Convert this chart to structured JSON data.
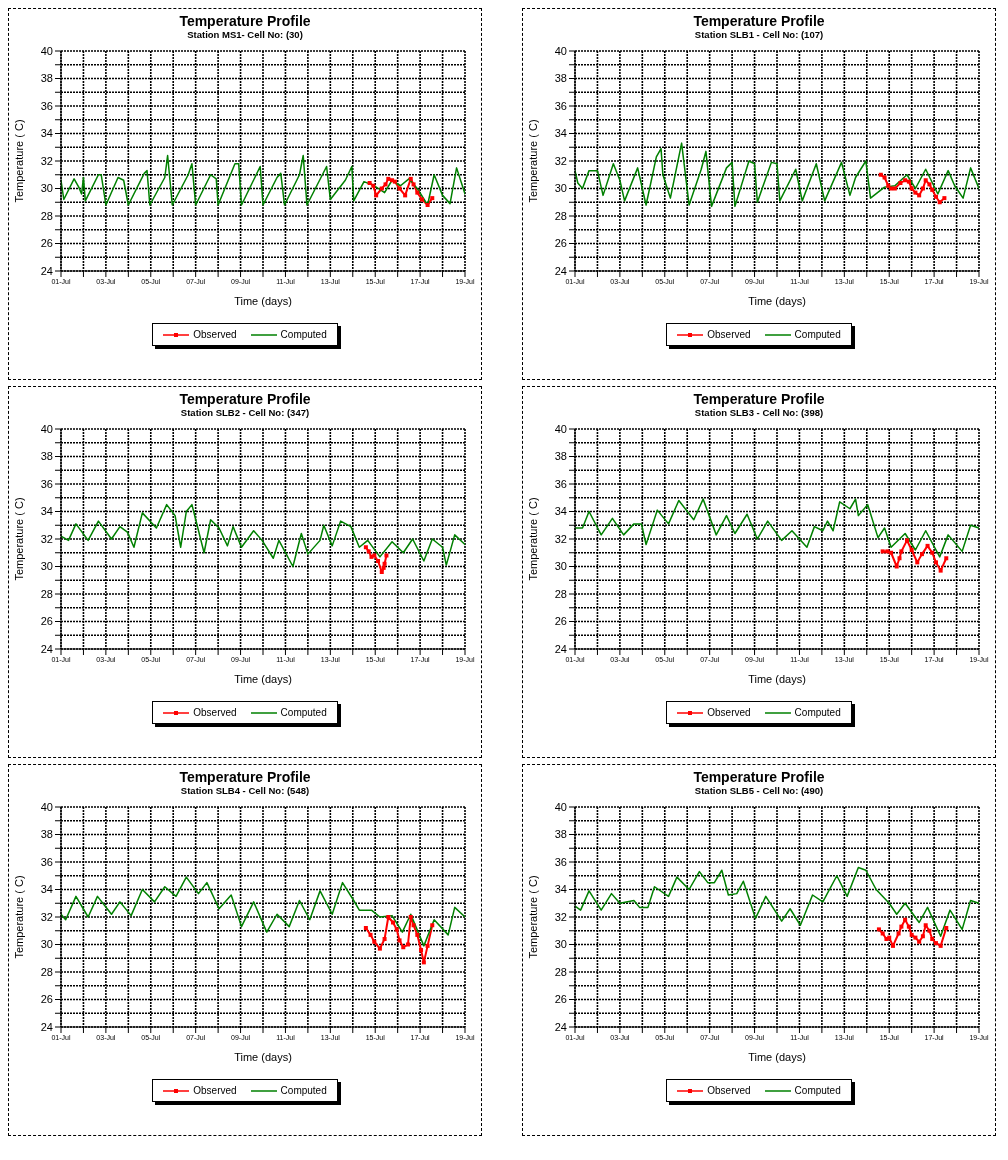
{
  "chart_data": [
    {
      "type": "line",
      "title": "Temperature Profile",
      "subtitle": "Station MS1- Cell No: (30)",
      "xlabel": "Time (days)",
      "ylabel": "Temperature ( C)",
      "xlim": [
        "--07-01",
        "--07-19"
      ],
      "xticks": [
        {
          "value": "--07-01",
          "label": "01-Jul"
        },
        {
          "value": "--07-02",
          "label": null
        },
        {
          "value": "--07-03",
          "label": "03-Jul"
        },
        {
          "value": "--07-04",
          "label": null
        },
        {
          "value": "--07-05",
          "label": "05-Jul"
        },
        {
          "value": "--07-06",
          "label": null
        },
        {
          "value": "--07-07",
          "label": "07-Jul"
        },
        {
          "value": "--07-08",
          "label": null
        },
        {
          "value": "--07-09",
          "label": "09-Jul"
        },
        {
          "value": "--07-10",
          "label": null
        },
        {
          "value": "--07-11",
          "label": "11-Jul"
        },
        {
          "value": "--07-12",
          "label": null
        },
        {
          "value": "--07-13",
          "label": "13-Jul"
        },
        {
          "value": "--07-14",
          "label": null
        },
        {
          "value": "--07-15",
          "label": "15-Jul"
        },
        {
          "value": "--07-16",
          "label": null
        },
        {
          "value": "--07-17",
          "label": "17-Jul"
        },
        {
          "value": "--07-18",
          "label": null
        },
        {
          "value": "--07-19",
          "label": "19-Jul"
        }
      ],
      "ylim": [
        24,
        40
      ],
      "yticks": [
        24,
        {
          "value": 25,
          "label": null
        },
        26,
        {
          "value": 27,
          "label": null
        },
        28,
        {
          "value": 29,
          "label": null
        },
        30,
        {
          "value": 31,
          "label": null
        },
        32,
        {
          "value": 33,
          "label": null
        },
        34,
        {
          "value": 35,
          "label": null
        },
        36,
        {
          "value": 37,
          "label": null
        },
        38,
        {
          "value": 39,
          "label": null
        },
        40
      ],
      "grid": true,
      "legend": "bottom",
      "series": [
        {
          "name": "Observed",
          "color": "#ff0000",
          "marker": "square",
          "x": [
            "--07-14T18:00",
            "--07-14T22:00",
            "--07-15T01:00",
            "--07-15T07:00",
            "--07-15T11:00",
            "--07-15T14:00",
            "--07-15T18:00",
            "--07-15T21:00",
            "--07-16T02:00",
            "--07-16T08:00",
            "--07-16T14:00",
            "--07-16T17:00",
            "--07-16T21:00",
            "--07-17T02:00",
            "--07-17T08:00",
            "--07-17T13:00"
          ],
          "values": [
            30.4,
            30.2,
            29.5,
            30.0,
            30.3,
            30.7,
            30.6,
            30.5,
            30.0,
            29.5,
            30.7,
            30.3,
            29.7,
            29.2,
            28.8,
            29.3
          ]
        },
        {
          "name": "Computed",
          "color": "#008000",
          "marker": "none",
          "x": [
            "--07-01T00:00",
            "--07-01T03:00",
            "--07-01T14:00",
            "--07-01T19:00",
            "--07-01T22:00",
            "--07-02T00:00",
            "--07-02T02:00",
            "--07-02T16:00",
            "--07-02T19:00",
            "--07-03T00:00",
            "--07-03T13:00",
            "--07-03T19:00",
            "--07-04T00:00",
            "--07-04T17:00",
            "--07-04T20:00",
            "--07-04T23:00",
            "--07-05T15:00",
            "--07-05T18:00",
            "--07-05T23:00",
            "--07-06T16:00",
            "--07-06T20:00",
            "--07-07T00:00",
            "--07-07T16:00",
            "--07-07T22:00",
            "--07-08T00:00",
            "--07-08T18:00",
            "--07-08T22:00",
            "--07-09T01:00",
            "--07-09T21:00",
            "--07-10T00:00",
            "--07-10T15:00",
            "--07-10T19:00",
            "--07-10T23:00",
            "--07-11T15:00",
            "--07-11T19:00",
            "--07-11T23:00",
            "--07-12T14:00",
            "--07-12T20:00",
            "--07-13T00:00",
            "--07-13T16:00",
            "--07-13T23:00",
            "--07-14T01:00",
            "--07-14T12:00",
            "--07-14T23:00",
            "--07-15T10:00",
            "--07-15T18:00",
            "--07-16T03:00",
            "--07-16T12:00",
            "--07-16T21:00",
            "--07-17T08:00",
            "--07-17T15:00",
            "--07-18T00:00",
            "--07-18T08:00",
            "--07-18T15:00",
            "--07-19T00:00"
          ],
          "values": [
            30.6,
            29.2,
            30.7,
            30.1,
            29.6,
            30.8,
            29.1,
            31.0,
            31.0,
            28.8,
            30.8,
            30.6,
            28.8,
            31.1,
            31.3,
            28.8,
            30.8,
            32.4,
            28.8,
            31.0,
            31.8,
            28.8,
            31.0,
            30.7,
            28.8,
            31.8,
            31.8,
            28.8,
            31.6,
            28.8,
            30.8,
            31.1,
            28.8,
            31.0,
            32.4,
            28.8,
            30.8,
            31.6,
            29.2,
            30.6,
            31.6,
            29.1,
            30.5,
            30.2,
            29.7,
            30.6,
            30.2,
            30.7,
            30.0,
            28.8,
            31.0,
            29.5,
            28.9,
            31.5,
            29.6
          ]
        }
      ]
    },
    {
      "type": "line",
      "title": "Temperature Profile",
      "subtitle": "Station SLB1 - Cell No: (107)",
      "xlabel": "Time (days)",
      "ylabel": "Temperature ( C)",
      "xlim": [
        "--07-01",
        "--07-19"
      ],
      "xticks": [
        {
          "value": "--07-01",
          "label": "01-Jul"
        },
        {
          "value": "--07-02",
          "label": null
        },
        {
          "value": "--07-03",
          "label": "03-Jul"
        },
        {
          "value": "--07-04",
          "label": null
        },
        {
          "value": "--07-05",
          "label": "05-Jul"
        },
        {
          "value": "--07-06",
          "label": null
        },
        {
          "value": "--07-07",
          "label": "07-Jul"
        },
        {
          "value": "--07-08",
          "label": null
        },
        {
          "value": "--07-09",
          "label": "09-Jul"
        },
        {
          "value": "--07-10",
          "label": null
        },
        {
          "value": "--07-11",
          "label": "11-Jul"
        },
        {
          "value": "--07-12",
          "label": null
        },
        {
          "value": "--07-13",
          "label": "13-Jul"
        },
        {
          "value": "--07-14",
          "label": null
        },
        {
          "value": "--07-15",
          "label": "15-Jul"
        },
        {
          "value": "--07-16",
          "label": null
        },
        {
          "value": "--07-17",
          "label": "17-Jul"
        },
        {
          "value": "--07-18",
          "label": null
        },
        {
          "value": "--07-19",
          "label": "19-Jul"
        }
      ],
      "ylim": [
        24,
        40
      ],
      "yticks": [
        24,
        {
          "value": 25,
          "label": null
        },
        26,
        {
          "value": 27,
          "label": null
        },
        28,
        {
          "value": 29,
          "label": null
        },
        30,
        {
          "value": 31,
          "label": null
        },
        32,
        {
          "value": 33,
          "label": null
        },
        34,
        {
          "value": 35,
          "label": null
        },
        36,
        {
          "value": 37,
          "label": null
        },
        38,
        {
          "value": 39,
          "label": null
        },
        40
      ],
      "grid": true,
      "legend": "bottom",
      "series": [
        {
          "name": "Observed",
          "color": "#ff0000",
          "marker": "square",
          "x": [
            "--07-14T15:00",
            "--07-14T19:00",
            "--07-14T23:00",
            "--07-15T02:00",
            "--07-15T06:00",
            "--07-15T12:00",
            "--07-15T17:00",
            "--07-15T21:00",
            "--07-16T00:00",
            "--07-16T04:00",
            "--07-16T08:00",
            "--07-16T12:00",
            "--07-16T15:00",
            "--07-16T19:00",
            "--07-16T22:00",
            "--07-17T02:00",
            "--07-17T06:00",
            "--07-17T11:00"
          ],
          "values": [
            31.0,
            30.8,
            30.2,
            30.0,
            30.0,
            30.4,
            30.6,
            30.5,
            30.0,
            29.7,
            29.5,
            30.0,
            30.6,
            30.3,
            29.9,
            29.4,
            29.0,
            29.3
          ]
        },
        {
          "name": "Computed",
          "color": "#008000",
          "marker": "none",
          "x": [
            "--07-01T00:00",
            "--07-01T03:00",
            "--07-01T08:00",
            "--07-01T15:00",
            "--07-02T00:00",
            "--07-02T06:00",
            "--07-02T17:00",
            "--07-03T00:00",
            "--07-03T05:00",
            "--07-03T19:00",
            "--07-04T04:00",
            "--07-04T15:00",
            "--07-04T20:00",
            "--07-04T22:00",
            "--07-05T06:00",
            "--07-05T18:00",
            "--07-06T02:00",
            "--07-06T15:00",
            "--07-06T20:00",
            "--07-07T02:00",
            "--07-07T18:00",
            "--07-08T00:00",
            "--07-08T03:00",
            "--07-08T18:00",
            "--07-09T00:00",
            "--07-09T03:00",
            "--07-09T18:00",
            "--07-10T00:00",
            "--07-10T03:00",
            "--07-10T20:00",
            "--07-11T03:00",
            "--07-11T18:00",
            "--07-12T03:00",
            "--07-12T21:00",
            "--07-13T06:00",
            "--07-13T12:00",
            "--07-13T23:00",
            "--07-14T04:00",
            "--07-14T19:00",
            "--07-15T06:00",
            "--07-15T19:00",
            "--07-16T04:00",
            "--07-16T15:00",
            "--07-17T04:00",
            "--07-17T15:00",
            "--07-17T22:00",
            "--07-18T07:00",
            "--07-18T15:00",
            "--07-19T00:00"
          ],
          "values": [
            31.3,
            30.4,
            30.0,
            31.3,
            31.3,
            29.5,
            31.8,
            30.6,
            29.1,
            31.5,
            28.8,
            32.3,
            32.9,
            31.0,
            29.3,
            33.3,
            28.8,
            31.4,
            32.7,
            28.7,
            31.5,
            31.9,
            28.7,
            32.0,
            31.8,
            29.0,
            31.9,
            31.8,
            29.1,
            31.4,
            29.1,
            31.8,
            29.1,
            31.9,
            29.5,
            30.8,
            32.0,
            29.3,
            30.1,
            30.2,
            31.0,
            30.0,
            31.4,
            29.6,
            31.3,
            30.2,
            29.3,
            31.5,
            30.0
          ]
        }
      ]
    },
    {
      "type": "line",
      "title": "Temperature Profile",
      "subtitle": "Station SLB2 - Cell No: (347)",
      "xlabel": "Time (days)",
      "ylabel": "Temperature ( C)",
      "xlim": [
        "--07-01",
        "--07-19"
      ],
      "xticks": [
        {
          "value": "--07-01",
          "label": "01-Jul"
        },
        {
          "value": "--07-02",
          "label": null
        },
        {
          "value": "--07-03",
          "label": "03-Jul"
        },
        {
          "value": "--07-04",
          "label": null
        },
        {
          "value": "--07-05",
          "label": "05-Jul"
        },
        {
          "value": "--07-06",
          "label": null
        },
        {
          "value": "--07-07",
          "label": "07-Jul"
        },
        {
          "value": "--07-08",
          "label": null
        },
        {
          "value": "--07-09",
          "label": "09-Jul"
        },
        {
          "value": "--07-10",
          "label": null
        },
        {
          "value": "--07-11",
          "label": "11-Jul"
        },
        {
          "value": "--07-12",
          "label": null
        },
        {
          "value": "--07-13",
          "label": "13-Jul"
        },
        {
          "value": "--07-14",
          "label": null
        },
        {
          "value": "--07-15",
          "label": "15-Jul"
        },
        {
          "value": "--07-16",
          "label": null
        },
        {
          "value": "--07-17",
          "label": "17-Jul"
        },
        {
          "value": "--07-18",
          "label": null
        },
        {
          "value": "--07-19",
          "label": "19-Jul"
        }
      ],
      "ylim": [
        24,
        40
      ],
      "yticks": [
        24,
        {
          "value": 25,
          "label": null
        },
        26,
        {
          "value": 27,
          "label": null
        },
        28,
        {
          "value": 29,
          "label": null
        },
        30,
        {
          "value": 31,
          "label": null
        },
        32,
        {
          "value": 33,
          "label": null
        },
        34,
        {
          "value": 35,
          "label": null
        },
        36,
        {
          "value": 37,
          "label": null
        },
        38,
        {
          "value": 39,
          "label": null
        },
        40
      ],
      "grid": true,
      "legend": "bottom",
      "series": [
        {
          "name": "Observed",
          "color": "#ff0000",
          "marker": "square",
          "x": [
            "--07-14T14:00",
            "--07-14T17:00",
            "--07-14T20:00",
            "--07-14T23:00",
            "--07-15T03:00",
            "--07-15T07:00",
            "--07-15T09:00",
            "--07-15T10:00",
            "--07-15T12:00"
          ],
          "values": [
            31.4,
            31.1,
            30.7,
            30.8,
            30.4,
            29.6,
            29.9,
            30.2,
            30.8
          ]
        },
        {
          "name": "Computed",
          "color": "#008000",
          "marker": "none",
          "x": [
            "--07-01T00:00",
            "--07-01T08:00",
            "--07-01T16:00",
            "--07-02T05:00",
            "--07-02T16:00",
            "--07-03T06:00",
            "--07-03T15:00",
            "--07-03T23:00",
            "--07-04T06:00",
            "--07-04T15:00",
            "--07-05T06:00",
            "--07-05T17:00",
            "--07-06T02:00",
            "--07-06T08:00",
            "--07-06T14:00",
            "--07-06T20:00",
            "--07-07T09:00",
            "--07-07T16:00",
            "--07-08T01:00",
            "--07-08T10:00",
            "--07-08T16:00",
            "--07-09T01:00",
            "--07-09T14:00",
            "--07-09T23:00",
            "--07-10T11:00",
            "--07-10T17:00",
            "--07-11T08:00",
            "--07-11T17:00",
            "--07-12T00:00",
            "--07-12T13:00",
            "--07-12T17:00",
            "--07-13T02:00",
            "--07-13T11:00",
            "--07-13T22:00",
            "--07-14T07:00",
            "--07-14T16:00",
            "--07-15T05:00",
            "--07-15T18:00",
            "--07-16T06:00",
            "--07-16T16:00",
            "--07-17T04:00",
            "--07-17T13:00",
            "--07-18T00:00",
            "--07-18T04:00",
            "--07-18T13:00",
            "--07-19T00:00"
          ],
          "values": [
            32.2,
            31.9,
            33.1,
            31.9,
            33.3,
            32.0,
            32.9,
            32.5,
            31.4,
            33.9,
            32.8,
            34.5,
            33.7,
            31.4,
            34.0,
            34.5,
            31.0,
            33.4,
            32.8,
            31.5,
            32.9,
            31.4,
            32.6,
            31.9,
            30.6,
            31.9,
            30.0,
            32.4,
            30.9,
            31.9,
            33.0,
            31.5,
            33.3,
            32.9,
            31.4,
            31.9,
            30.7,
            31.8,
            31.0,
            32.0,
            30.4,
            32.0,
            31.4,
            30.1,
            32.3,
            31.6
          ]
        }
      ]
    },
    {
      "type": "line",
      "title": "Temperature Profile",
      "subtitle": "Station SLB3 - Cell No: (398)",
      "xlabel": "Time (days)",
      "ylabel": "Temperature ( C)",
      "xlim": [
        "--07-01",
        "--07-19"
      ],
      "xticks": [
        {
          "value": "--07-01",
          "label": "01-Jul"
        },
        {
          "value": "--07-02",
          "label": null
        },
        {
          "value": "--07-03",
          "label": "03-Jul"
        },
        {
          "value": "--07-04",
          "label": null
        },
        {
          "value": "--07-05",
          "label": "05-Jul"
        },
        {
          "value": "--07-06",
          "label": null
        },
        {
          "value": "--07-07",
          "label": "07-Jul"
        },
        {
          "value": "--07-08",
          "label": null
        },
        {
          "value": "--07-09",
          "label": "09-Jul"
        },
        {
          "value": "--07-10",
          "label": null
        },
        {
          "value": "--07-11",
          "label": "11-Jul"
        },
        {
          "value": "--07-12",
          "label": null
        },
        {
          "value": "--07-13",
          "label": "13-Jul"
        },
        {
          "value": "--07-14",
          "label": null
        },
        {
          "value": "--07-15",
          "label": "15-Jul"
        },
        {
          "value": "--07-16",
          "label": null
        },
        {
          "value": "--07-17",
          "label": "17-Jul"
        },
        {
          "value": "--07-18",
          "label": null
        },
        {
          "value": "--07-19",
          "label": "19-Jul"
        }
      ],
      "ylim": [
        24,
        40
      ],
      "yticks": [
        24,
        {
          "value": 25,
          "label": null
        },
        26,
        {
          "value": 27,
          "label": null
        },
        28,
        {
          "value": 29,
          "label": null
        },
        30,
        {
          "value": 31,
          "label": null
        },
        32,
        {
          "value": 33,
          "label": null
        },
        34,
        {
          "value": 35,
          "label": null
        },
        36,
        {
          "value": 37,
          "label": null
        },
        38,
        {
          "value": 39,
          "label": null
        },
        40
      ],
      "grid": true,
      "legend": "bottom",
      "series": [
        {
          "name": "Observed",
          "color": "#ff0000",
          "marker": "square",
          "x": [
            "--07-14T17:00",
            "--07-14T22:00",
            "--07-15T02:00",
            "--07-15T08:00",
            "--07-15T11:00",
            "--07-15T13:00",
            "--07-15T19:00",
            "--07-16T00:00",
            "--07-16T06:00",
            "--07-16T11:00",
            "--07-16T17:00",
            "--07-16T22:00",
            "--07-17T02:00",
            "--07-17T07:00",
            "--07-17T13:00"
          ],
          "values": [
            31.1,
            31.1,
            31.0,
            30.0,
            30.6,
            31.1,
            31.9,
            31.2,
            30.3,
            30.9,
            31.5,
            31.0,
            30.3,
            29.7,
            30.6
          ]
        },
        {
          "name": "Computed",
          "color": "#008000",
          "marker": "none",
          "x": [
            "--07-01T00:00",
            "--07-01T08:00",
            "--07-01T15:00",
            "--07-02T04:00",
            "--07-02T16:00",
            "--07-03T04:00",
            "--07-03T15:00",
            "--07-03T23:00",
            "--07-04T04:00",
            "--07-04T16:00",
            "--07-05T04:00",
            "--07-05T15:00",
            "--07-06T07:00",
            "--07-06T17:00",
            "--07-07T07:00",
            "--07-07T18:00",
            "--07-08T03:00",
            "--07-08T16:00",
            "--07-09T03:00",
            "--07-09T14:00",
            "--07-10T05:00",
            "--07-10T16:00",
            "--07-11T08:00",
            "--07-11T16:00",
            "--07-12T01:00",
            "--07-12T06:00",
            "--07-12T12:00",
            "--07-12T19:00",
            "--07-13T06:00",
            "--07-13T12:00",
            "--07-13T15:00",
            "--07-14T01:00",
            "--07-14T12:00",
            "--07-14T19:00",
            "--07-15T02:00",
            "--07-15T17:00",
            "--07-16T04:00",
            "--07-16T15:00",
            "--07-17T06:00",
            "--07-17T15:00",
            "--07-18T06:00",
            "--07-18T15:00",
            "--07-19T00:00"
          ],
          "values": [
            32.8,
            32.8,
            34.0,
            32.3,
            33.5,
            32.3,
            33.1,
            33.1,
            31.6,
            34.1,
            33.1,
            34.8,
            33.4,
            34.9,
            32.3,
            33.7,
            32.4,
            33.8,
            32.0,
            33.3,
            31.9,
            32.6,
            31.4,
            32.9,
            32.6,
            33.3,
            32.6,
            34.7,
            34.2,
            34.9,
            33.7,
            34.5,
            32.1,
            32.8,
            31.4,
            32.4,
            31.2,
            32.6,
            30.7,
            32.3,
            31.1,
            33.0,
            32.8
          ]
        }
      ]
    },
    {
      "type": "line",
      "title": "Temperature Profile",
      "subtitle": "Station SLB4 - Cell No: (548)",
      "xlabel": "Time (days)",
      "ylabel": "Temperature ( C)",
      "xlim": [
        "--07-01",
        "--07-19"
      ],
      "xticks": [
        {
          "value": "--07-01",
          "label": "01-Jul"
        },
        {
          "value": "--07-02",
          "label": null
        },
        {
          "value": "--07-03",
          "label": "03-Jul"
        },
        {
          "value": "--07-04",
          "label": null
        },
        {
          "value": "--07-05",
          "label": "05-Jul"
        },
        {
          "value": "--07-06",
          "label": null
        },
        {
          "value": "--07-07",
          "label": "07-Jul"
        },
        {
          "value": "--07-08",
          "label": null
        },
        {
          "value": "--07-09",
          "label": "09-Jul"
        },
        {
          "value": "--07-10",
          "label": null
        },
        {
          "value": "--07-11",
          "label": "11-Jul"
        },
        {
          "value": "--07-12",
          "label": null
        },
        {
          "value": "--07-13",
          "label": "13-Jul"
        },
        {
          "value": "--07-14",
          "label": null
        },
        {
          "value": "--07-15",
          "label": "15-Jul"
        },
        {
          "value": "--07-16",
          "label": null
        },
        {
          "value": "--07-17",
          "label": "17-Jul"
        },
        {
          "value": "--07-18",
          "label": null
        },
        {
          "value": "--07-19",
          "label": "19-Jul"
        }
      ],
      "ylim": [
        24,
        40
      ],
      "yticks": [
        24,
        {
          "value": 25,
          "label": null
        },
        26,
        {
          "value": 27,
          "label": null
        },
        28,
        {
          "value": 29,
          "label": null
        },
        30,
        {
          "value": 31,
          "label": null
        },
        32,
        {
          "value": 33,
          "label": null
        },
        34,
        {
          "value": 35,
          "label": null
        },
        36,
        {
          "value": 37,
          "label": null
        },
        38,
        {
          "value": 39,
          "label": null
        },
        40
      ],
      "grid": true,
      "legend": "bottom",
      "series": [
        {
          "name": "Observed",
          "color": "#ff0000",
          "marker": "square",
          "x": [
            "--07-14T14:00",
            "--07-14T19:00",
            "--07-14T23:00",
            "--07-15T05:00",
            "--07-15T10:00",
            "--07-15T14:00",
            "--07-15T19:00",
            "--07-15T23:00",
            "--07-16T02:00",
            "--07-16T06:00",
            "--07-16T11:00",
            "--07-16T14:00",
            "--07-16T17:00",
            "--07-16T21:00",
            "--07-17T01:00",
            "--07-17T04:00",
            "--07-17T08:00",
            "--07-17T13:00"
          ],
          "values": [
            31.2,
            30.7,
            30.2,
            29.7,
            30.4,
            32.0,
            31.6,
            31.1,
            30.3,
            29.8,
            30.0,
            32.0,
            31.4,
            30.7,
            29.6,
            28.7,
            29.9,
            31.4
          ]
        },
        {
          "name": "Computed",
          "color": "#008000",
          "marker": "none",
          "x": [
            "--07-01T00:00",
            "--07-01T05:00",
            "--07-01T16:00",
            "--07-02T05:00",
            "--07-02T15:00",
            "--07-03T06:00",
            "--07-03T15:00",
            "--07-04T03:00",
            "--07-04T15:00",
            "--07-05T04:00",
            "--07-05T15:00",
            "--07-06T03:00",
            "--07-06T14:00",
            "--07-07T03:00",
            "--07-07T12:00",
            "--07-08T01:00",
            "--07-08T14:00",
            "--07-09T01:00",
            "--07-09T14:00",
            "--07-10T04:00",
            "--07-10T15:00",
            "--07-11T04:00",
            "--07-11T15:00",
            "--07-12T02:00",
            "--07-12T13:00",
            "--07-13T02:00",
            "--07-13T13:00",
            "--07-14T01:00",
            "--07-14T07:00",
            "--07-14T20:00",
            "--07-15T05:00",
            "--07-15T18:00",
            "--07-16T05:00",
            "--07-16T14:00",
            "--07-17T04:00",
            "--07-17T15:00",
            "--07-18T06:00",
            "--07-18T13:00",
            "--07-19T00:00"
          ],
          "values": [
            32.2,
            31.8,
            33.5,
            32.0,
            33.5,
            32.2,
            33.1,
            32.1,
            34.0,
            33.1,
            34.2,
            33.5,
            34.9,
            33.7,
            34.5,
            32.6,
            33.6,
            31.3,
            33.1,
            30.9,
            32.2,
            31.3,
            33.2,
            31.8,
            33.9,
            32.2,
            34.5,
            33.2,
            32.5,
            32.5,
            32.0,
            32.1,
            30.9,
            32.2,
            29.9,
            31.8,
            30.7,
            32.7,
            32.0
          ]
        }
      ]
    },
    {
      "type": "line",
      "title": "Temperature Profile",
      "subtitle": "Station SLB5 - Cell No: (490)",
      "xlabel": "Time (days)",
      "ylabel": "Temperature ( C)",
      "xlim": [
        "--07-01",
        "--07-19"
      ],
      "xticks": [
        {
          "value": "--07-01",
          "label": "01-Jul"
        },
        {
          "value": "--07-02",
          "label": null
        },
        {
          "value": "--07-03",
          "label": "03-Jul"
        },
        {
          "value": "--07-04",
          "label": null
        },
        {
          "value": "--07-05",
          "label": "05-Jul"
        },
        {
          "value": "--07-06",
          "label": null
        },
        {
          "value": "--07-07",
          "label": "07-Jul"
        },
        {
          "value": "--07-08",
          "label": null
        },
        {
          "value": "--07-09",
          "label": "09-Jul"
        },
        {
          "value": "--07-10",
          "label": null
        },
        {
          "value": "--07-11",
          "label": "11-Jul"
        },
        {
          "value": "--07-12",
          "label": null
        },
        {
          "value": "--07-13",
          "label": "13-Jul"
        },
        {
          "value": "--07-14",
          "label": null
        },
        {
          "value": "--07-15",
          "label": "15-Jul"
        },
        {
          "value": "--07-16",
          "label": null
        },
        {
          "value": "--07-17",
          "label": "17-Jul"
        },
        {
          "value": "--07-18",
          "label": null
        },
        {
          "value": "--07-19",
          "label": "19-Jul"
        }
      ],
      "ylim": [
        24,
        40
      ],
      "yticks": [
        24,
        {
          "value": 25,
          "label": null
        },
        26,
        {
          "value": 27,
          "label": null
        },
        28,
        {
          "value": 29,
          "label": null
        },
        30,
        {
          "value": 31,
          "label": null
        },
        32,
        {
          "value": 33,
          "label": null
        },
        34,
        {
          "value": 35,
          "label": null
        },
        36,
        {
          "value": 37,
          "label": null
        },
        38,
        {
          "value": 39,
          "label": null
        },
        40
      ],
      "grid": true,
      "legend": "bottom",
      "series": [
        {
          "name": "Observed",
          "color": "#ff0000",
          "marker": "square",
          "x": [
            "--07-14T13:00",
            "--07-14T17:00",
            "--07-14T21:00",
            "--07-15T00:00",
            "--07-15T04:00",
            "--07-15T10:00",
            "--07-15T13:00",
            "--07-15T17:00",
            "--07-15T21:00",
            "--07-16T00:00",
            "--07-16T04:00",
            "--07-16T08:00",
            "--07-16T12:00",
            "--07-16T15:00",
            "--07-16T19:00",
            "--07-16T22:00",
            "--07-17T02:00",
            "--07-17T07:00",
            "--07-17T13:00"
          ],
          "values": [
            31.1,
            30.8,
            30.4,
            30.5,
            29.9,
            30.8,
            31.3,
            31.8,
            31.3,
            30.7,
            30.5,
            30.2,
            30.6,
            31.4,
            31.0,
            30.4,
            30.1,
            29.9,
            31.2
          ]
        },
        {
          "name": "Computed",
          "color": "#008000",
          "marker": "none",
          "x": [
            "--07-01T00:00",
            "--07-01T06:00",
            "--07-01T15:00",
            "--07-02T04:00",
            "--07-02T15:00",
            "--07-03T00:00",
            "--07-03T15:00",
            "--07-03T21:00",
            "--07-04T06:00",
            "--07-04T13:00",
            "--07-05T04:00",
            "--07-05T13:00",
            "--07-06T02:00",
            "--07-06T13:00",
            "--07-06T22:00",
            "--07-07T05:00",
            "--07-07T13:00",
            "--07-07T20:00",
            "--07-08T05:00",
            "--07-08T12:00",
            "--07-09T01:00",
            "--07-09T12:00",
            "--07-10T05:00",
            "--07-10T14:00",
            "--07-11T01:00",
            "--07-11T14:00",
            "--07-12T01:00",
            "--07-12T16:00",
            "--07-13T03:00",
            "--07-13T15:00",
            "--07-13T23:00",
            "--07-14T10:00",
            "--07-15T00:00",
            "--07-15T08:00",
            "--07-15T17:00",
            "--07-16T08:00",
            "--07-16T17:00",
            "--07-17T07:00",
            "--07-17T17:00",
            "--07-18T06:00",
            "--07-18T15:00",
            "--07-19T00:00"
          ],
          "values": [
            32.8,
            32.5,
            33.9,
            32.5,
            33.7,
            33.0,
            33.2,
            32.7,
            32.7,
            34.2,
            33.5,
            34.9,
            34.0,
            35.3,
            34.5,
            34.5,
            35.4,
            33.6,
            33.7,
            34.6,
            31.9,
            33.5,
            31.7,
            32.6,
            31.4,
            33.6,
            33.1,
            35.0,
            33.5,
            35.6,
            35.4,
            34.0,
            33.0,
            32.2,
            33.0,
            31.6,
            32.7,
            30.6,
            32.5,
            31.1,
            33.2,
            33.0
          ]
        }
      ]
    }
  ]
}
